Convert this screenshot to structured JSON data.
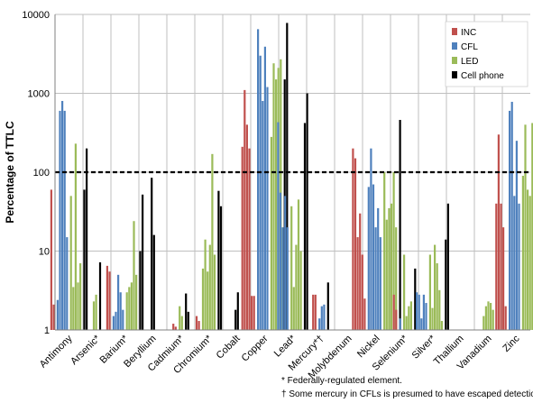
{
  "chart_data": {
    "type": "bar",
    "ylabel": "Percentage of TTLC",
    "yscale": "log",
    "ylim": [
      1,
      10000
    ],
    "yticks": [
      "1",
      "10",
      "100",
      "1000",
      "10000"
    ],
    "reference_line": 100,
    "grid": "vertical separators between categories",
    "legend_position": "top-right",
    "categories": [
      "Antimony",
      "Arsenic*",
      "Barium*",
      "Beryllium",
      "Cadmium*",
      "Chromium*",
      "Cobalt",
      "Copper",
      "Lead*",
      "Mercury*†",
      "Molybdenum",
      "Nickel",
      "Selenium*",
      "Silver*",
      "Thallium",
      "Vanadium",
      "Zinc"
    ],
    "series": [
      {
        "name": "INC",
        "color": "#c0504d",
        "bars_per_category": [
          [
            60,
            2.1
          ],
          [],
          [
            6.5,
            5.5
          ],
          [],
          [
            1.2,
            1.1
          ],
          [
            1.5,
            1.3
          ],
          [],
          [
            210,
            1100,
            400,
            200,
            2.7,
            2.7
          ],
          [],
          [
            2.8,
            2.8
          ],
          [],
          [
            200,
            150,
            15,
            30,
            9,
            2.5
          ],
          [
            2.8,
            1.8
          ],
          [],
          [],
          [],
          [
            40,
            300,
            40,
            20,
            2
          ]
        ]
      },
      {
        "name": "CFL",
        "color": "#4f81bd",
        "bars_per_category": [
          [
            2.4,
            600,
            800,
            600,
            15
          ],
          [],
          [
            1.5,
            1.7,
            5,
            3,
            1.8
          ],
          [],
          [],
          [],
          [],
          [
            6500,
            3000,
            800,
            3900,
            1200
          ],
          [
            430,
            55,
            20,
            50,
            20
          ],
          [
            1.4,
            2,
            2.1
          ],
          [],
          [
            65,
            200,
            70,
            20,
            35,
            15
          ],
          [
            1.4
          ],
          [
            3,
            2.8,
            1.4,
            2.8,
            2.2
          ],
          [],
          [],
          [
            600,
            780,
            50,
            250,
            40
          ]
        ]
      },
      {
        "name": "LED",
        "color": "#9bbb59",
        "bars_per_category": [
          [
            50,
            3.5,
            230,
            4,
            7
          ],
          [
            2.3,
            2.8
          ],
          [
            3,
            3.5,
            4,
            24,
            5
          ],
          [],
          [
            2,
            1.5
          ],
          [
            6,
            14,
            5.5,
            12,
            170,
            9
          ],
          [],
          [
            280,
            2400,
            1500,
            2100,
            2700
          ],
          [
            37,
            3.5,
            12,
            45,
            10
          ],
          [],
          [],
          [
            100,
            25,
            35,
            40,
            100,
            20
          ],
          [
            9,
            1.5,
            2,
            2.3
          ],
          [
            9,
            1.9,
            12,
            7,
            3.2,
            1.3
          ],
          [],
          [
            1.5,
            2,
            2.3,
            2.2,
            1.8
          ],
          [
            90,
            400,
            60,
            50,
            420
          ]
        ]
      },
      {
        "name": "Cell phone",
        "color": "#000000",
        "bars_per_category": [
          [
            60,
            200
          ],
          [
            7.2
          ],
          [
            10,
            52
          ],
          [
            85,
            16
          ],
          [
            2.9,
            1.7
          ],
          [
            58,
            37
          ],
          [
            1.8,
            3
          ],
          [
            1500,
            7800
          ],
          [
            420,
            1000
          ],
          [
            4
          ],
          [],
          [
            460
          ],
          [
            6
          ],
          [
            14,
            40
          ],
          [],
          [],
          [
            220
          ]
        ]
      }
    ]
  },
  "footnotes": {
    "line1": "* Federally-regulated element.",
    "line2": "† Some mercury in CFLs is presumed to have escaped detection."
  }
}
